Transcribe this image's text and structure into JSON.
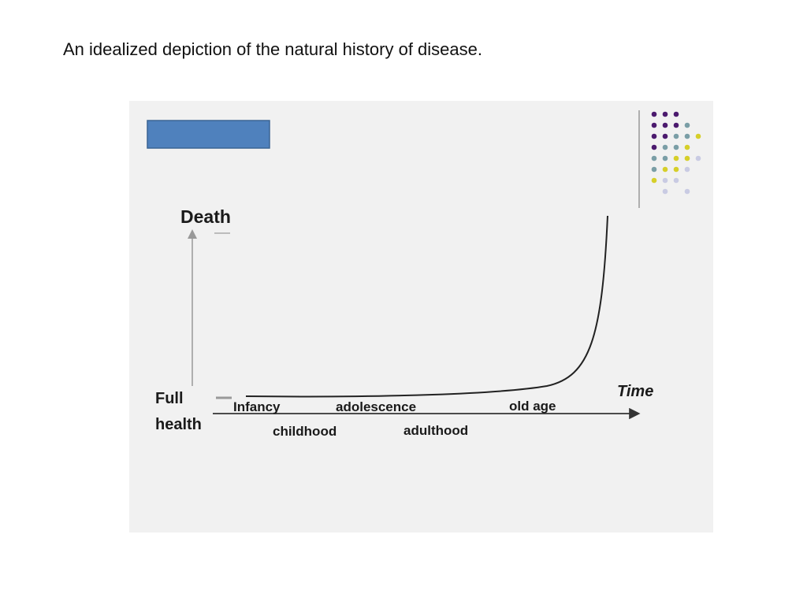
{
  "caption": "An idealized depiction of the natural history of disease.",
  "diagram": {
    "y_axis": {
      "top_label": "Death",
      "bottom_label_line1": "Full",
      "bottom_label_line2": "health"
    },
    "x_axis": {
      "label": "Time"
    },
    "stages_upper": [
      "Infancy",
      "adolescence",
      "old age"
    ],
    "stages_lower": [
      "childhood",
      "adulthood"
    ]
  },
  "colors": {
    "panel_background": "#f1f1f1",
    "title_box": "#4f81bd",
    "dot_purple": "#4b1a6e",
    "dot_teal": "#7a9ea6",
    "dot_yellow": "#d6cf2a",
    "dot_lavender": "#c9cbe3"
  },
  "icons": {
    "decoration": "dot-grid-pattern"
  }
}
